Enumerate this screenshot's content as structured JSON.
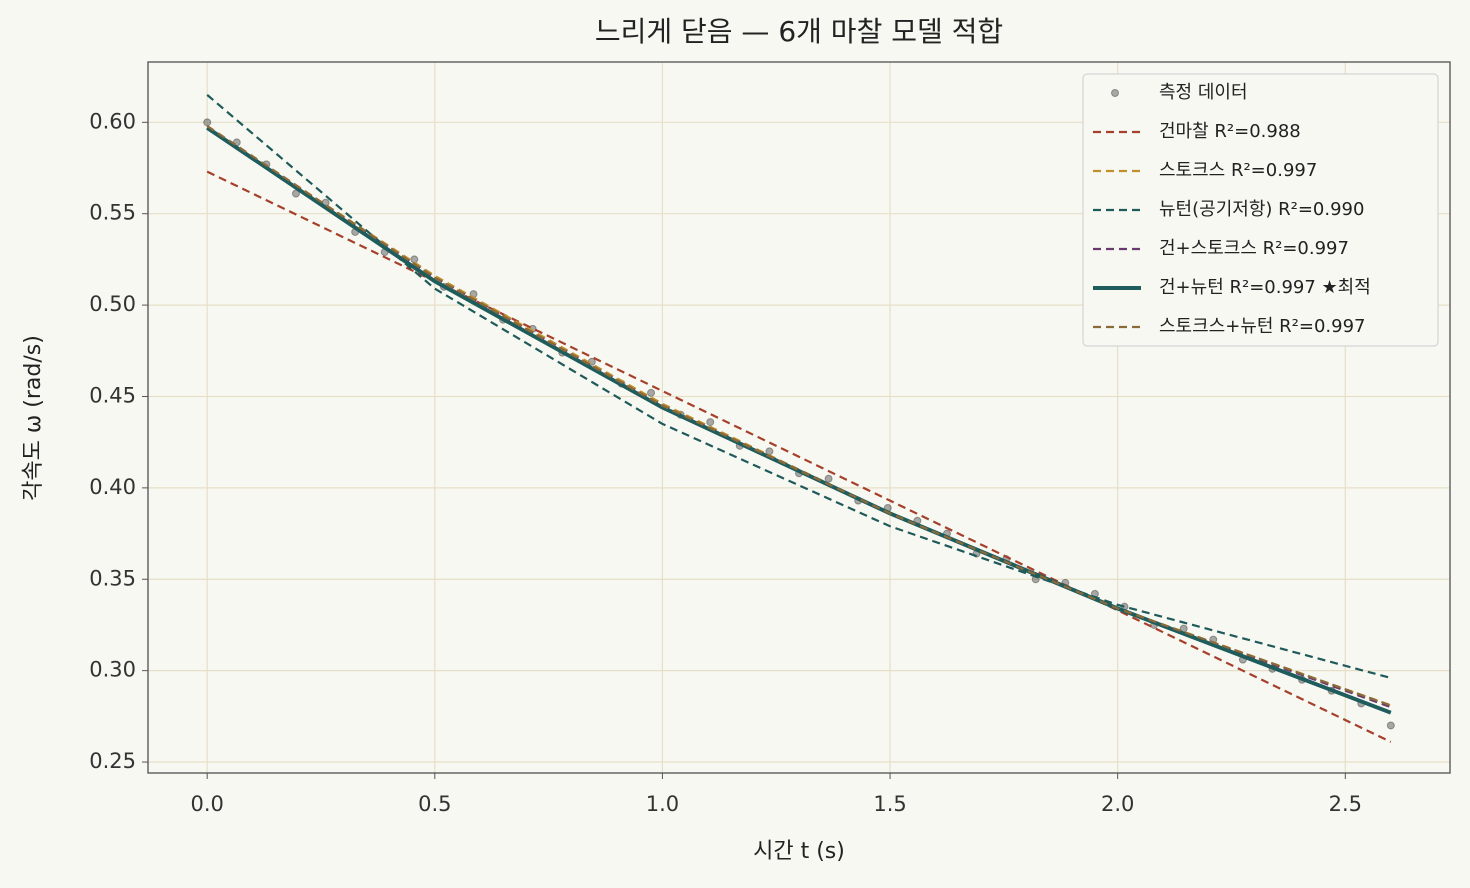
{
  "chart_data": {
    "type": "line",
    "title": "느리게 닫음 — 6개 마찰 모델 적합",
    "x_label": "시간 t (s)",
    "y_label": "각속도 ω (rad/s)",
    "xlim": [
      -0.13,
      2.73
    ],
    "ylim": [
      0.244,
      0.633
    ],
    "xticks": [
      {
        "value": 0,
        "label": "0.0"
      },
      {
        "value": 0.5,
        "label": "0.5"
      },
      {
        "value": 1,
        "label": "1.0"
      },
      {
        "value": 1.5,
        "label": "1.5"
      },
      {
        "value": 2,
        "label": "2.0"
      },
      {
        "value": 2.5,
        "label": "2.5"
      }
    ],
    "yticks": [
      {
        "value": 0.25,
        "label": "0.25"
      },
      {
        "value": 0.3,
        "label": "0.30"
      },
      {
        "value": 0.35,
        "label": "0.35"
      },
      {
        "value": 0.4,
        "label": "0.40"
      },
      {
        "value": 0.45,
        "label": "0.45"
      },
      {
        "value": 0.5,
        "label": "0.50"
      },
      {
        "value": 0.55,
        "label": "0.55"
      },
      {
        "value": 0.6,
        "label": "0.60"
      }
    ],
    "grid": true,
    "legend": "upper right",
    "series": [
      {
        "name": "측정 데이터",
        "color": "#444444",
        "style": "dots",
        "x": [
          0,
          0.065,
          0.13,
          0.195,
          0.26,
          0.325,
          0.39,
          0.455,
          0.52,
          0.585,
          0.65,
          0.715,
          0.78,
          0.845,
          0.91,
          0.975,
          1.04,
          1.105,
          1.17,
          1.235,
          1.3,
          1.365,
          1.43,
          1.495,
          1.56,
          1.625,
          1.69,
          1.755,
          1.82,
          1.885,
          1.95,
          2.015,
          2.08,
          2.145,
          2.21,
          2.275,
          2.34,
          2.405,
          2.47,
          2.535,
          2.6
        ],
        "values": [
          0.6,
          0.589,
          0.577,
          0.561,
          0.556,
          0.54,
          0.529,
          0.525,
          0.51,
          0.506,
          0.492,
          0.487,
          0.474,
          0.469,
          0.457,
          0.452,
          0.44,
          0.436,
          0.423,
          0.42,
          0.408,
          0.405,
          0.393,
          0.389,
          0.382,
          0.375,
          0.364,
          0.361,
          0.35,
          0.348,
          0.342,
          0.335,
          0.325,
          0.323,
          0.317,
          0.306,
          0.301,
          0.295,
          0.289,
          0.282,
          0.27
        ]
      },
      {
        "name": "건마찰  R²=0.988",
        "color": "#a5402a",
        "style": "dashed",
        "x": [
          0,
          0.5,
          1,
          1.5,
          2,
          2.6
        ],
        "values": [
          0.573,
          0.513,
          0.453,
          0.393,
          0.333,
          0.261
        ]
      },
      {
        "name": "스토크스  R²=0.997",
        "color": "#c0902c",
        "style": "dashed",
        "x": [
          0,
          0.5,
          1,
          1.5,
          2,
          2.6
        ],
        "values": [
          0.597,
          0.516,
          0.446,
          0.386,
          0.334,
          0.281
        ]
      },
      {
        "name": "뉴턴(공기저항)  R²=0.990",
        "color": "#1f5a5a",
        "style": "dashed",
        "x": [
          0,
          0.5,
          1,
          1.5,
          2,
          2.6
        ],
        "values": [
          0.615,
          0.509,
          0.435,
          0.379,
          0.336,
          0.296
        ]
      },
      {
        "name": "건+스토크스  R²=0.997",
        "color": "#6a3a6e",
        "style": "dashed",
        "x": [
          0,
          0.5,
          1,
          1.5,
          2,
          2.6
        ],
        "values": [
          0.597,
          0.515,
          0.445,
          0.386,
          0.334,
          0.28
        ]
      },
      {
        "name": "건+뉴턴  R²=0.997  ★최적",
        "color": "#1f5c5c",
        "style": "solid",
        "x": [
          0,
          0.5,
          1,
          1.5,
          2,
          2.6
        ],
        "values": [
          0.597,
          0.513,
          0.444,
          0.386,
          0.334,
          0.277
        ]
      },
      {
        "name": "스토크스+뉴턴  R²=0.997",
        "color": "#8a6a3a",
        "style": "dashed",
        "x": [
          0,
          0.5,
          1,
          1.5,
          2,
          2.6
        ],
        "values": [
          0.598,
          0.515,
          0.445,
          0.386,
          0.334,
          0.281
        ]
      }
    ]
  }
}
